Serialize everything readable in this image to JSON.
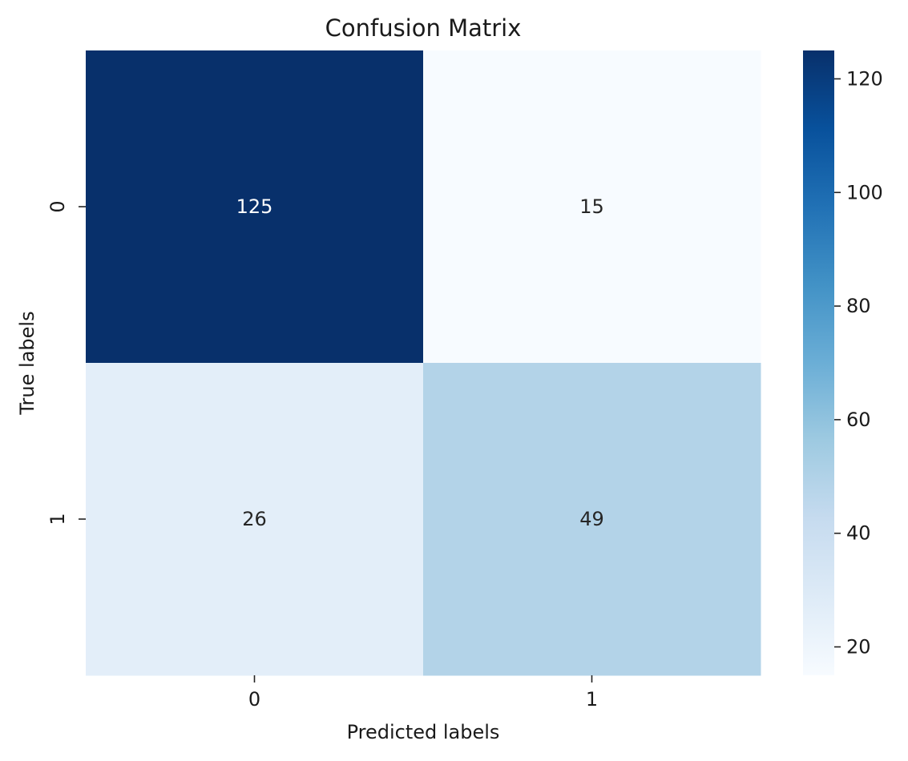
{
  "chart_data": {
    "type": "heatmap",
    "title": "Confusion Matrix",
    "xlabel": "Predicted labels",
    "ylabel": "True labels",
    "x_categories": [
      "0",
      "1"
    ],
    "y_categories": [
      "0",
      "1"
    ],
    "values": [
      [
        125,
        15
      ],
      [
        26,
        49
      ]
    ],
    "colormap": "Blues",
    "colorbar": {
      "range": [
        15,
        125
      ],
      "ticks": [
        20,
        40,
        60,
        80,
        100,
        120
      ]
    },
    "grid": false,
    "legend": "right"
  },
  "colors": {
    "blues_light": "#f7fbff",
    "blues_dark": "#08306b",
    "text_dark": "#262626",
    "text_light": "#ffffff"
  }
}
